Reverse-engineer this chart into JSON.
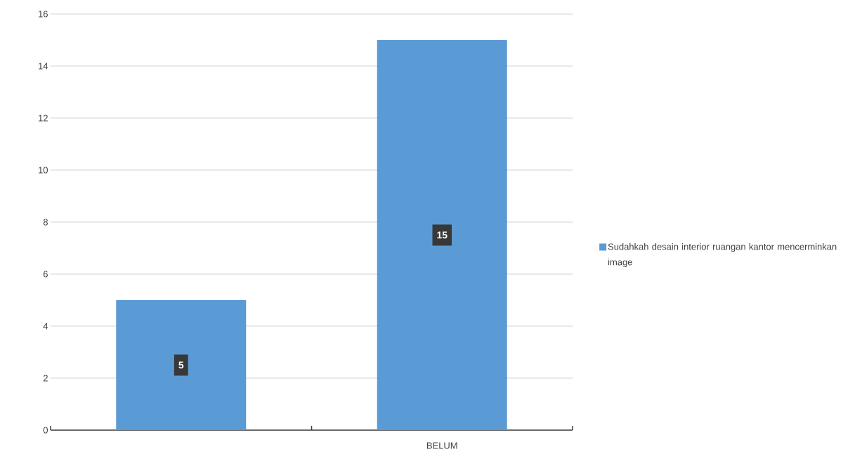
{
  "chart_data": {
    "type": "bar",
    "categories": [
      null,
      "BELUM"
    ],
    "series": [
      {
        "name": "Sudahkah desain interior ruangan kantor mencerminkan image",
        "color": "#5b9bd5",
        "values": [
          5,
          15
        ]
      }
    ],
    "ylim": [
      0,
      16
    ],
    "yticks": [
      0,
      2,
      4,
      6,
      8,
      10,
      12,
      14,
      16
    ],
    "grid": "y",
    "legend": "right",
    "data_labels": true
  }
}
